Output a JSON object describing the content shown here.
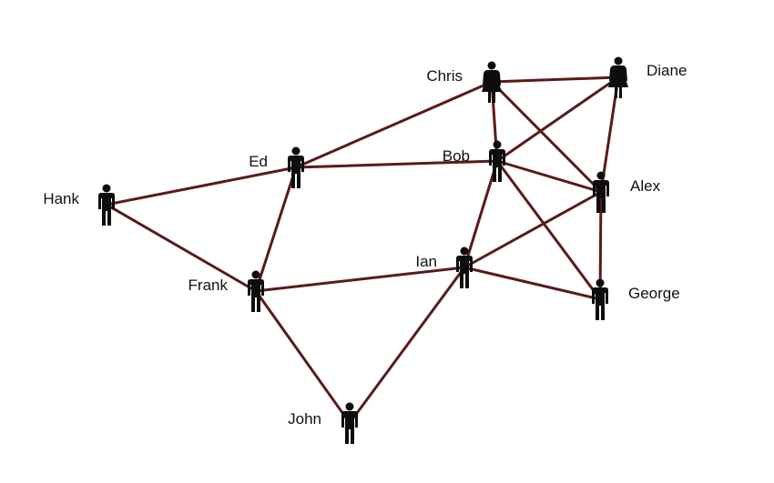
{
  "nodes": [
    {
      "id": "chris",
      "label": "Chris",
      "figure": "female-person-icon"
    },
    {
      "id": "diane",
      "label": "Diane",
      "figure": "female-person-icon"
    },
    {
      "id": "bob",
      "label": "Bob",
      "figure": "male-person-icon"
    },
    {
      "id": "ed",
      "label": "Ed",
      "figure": "male-person-icon"
    },
    {
      "id": "alex",
      "label": "Alex",
      "figure": "male-person-icon"
    },
    {
      "id": "hank",
      "label": "Hank",
      "figure": "male-person-icon"
    },
    {
      "id": "ian",
      "label": "Ian",
      "figure": "male-person-icon"
    },
    {
      "id": "frank",
      "label": "Frank",
      "figure": "male-person-icon"
    },
    {
      "id": "george",
      "label": "George",
      "figure": "male-person-icon"
    },
    {
      "id": "john",
      "label": "John",
      "figure": "male-person-icon"
    }
  ],
  "edges": [
    [
      "chris",
      "diane"
    ],
    [
      "chris",
      "bob"
    ],
    [
      "chris",
      "alex"
    ],
    [
      "chris",
      "ed"
    ],
    [
      "diane",
      "bob"
    ],
    [
      "diane",
      "alex"
    ],
    [
      "bob",
      "ed"
    ],
    [
      "bob",
      "alex"
    ],
    [
      "bob",
      "george"
    ],
    [
      "bob",
      "ian"
    ],
    [
      "ed",
      "hank"
    ],
    [
      "ed",
      "frank"
    ],
    [
      "hank",
      "frank"
    ],
    [
      "alex",
      "ian"
    ],
    [
      "alex",
      "george"
    ],
    [
      "ian",
      "frank"
    ],
    [
      "ian",
      "george"
    ],
    [
      "ian",
      "john"
    ],
    [
      "frank",
      "john"
    ]
  ],
  "colors": {
    "edge": "#5a1a1a",
    "figure": "#0d0d0d",
    "label": "#111111",
    "background": "#ffffff"
  }
}
